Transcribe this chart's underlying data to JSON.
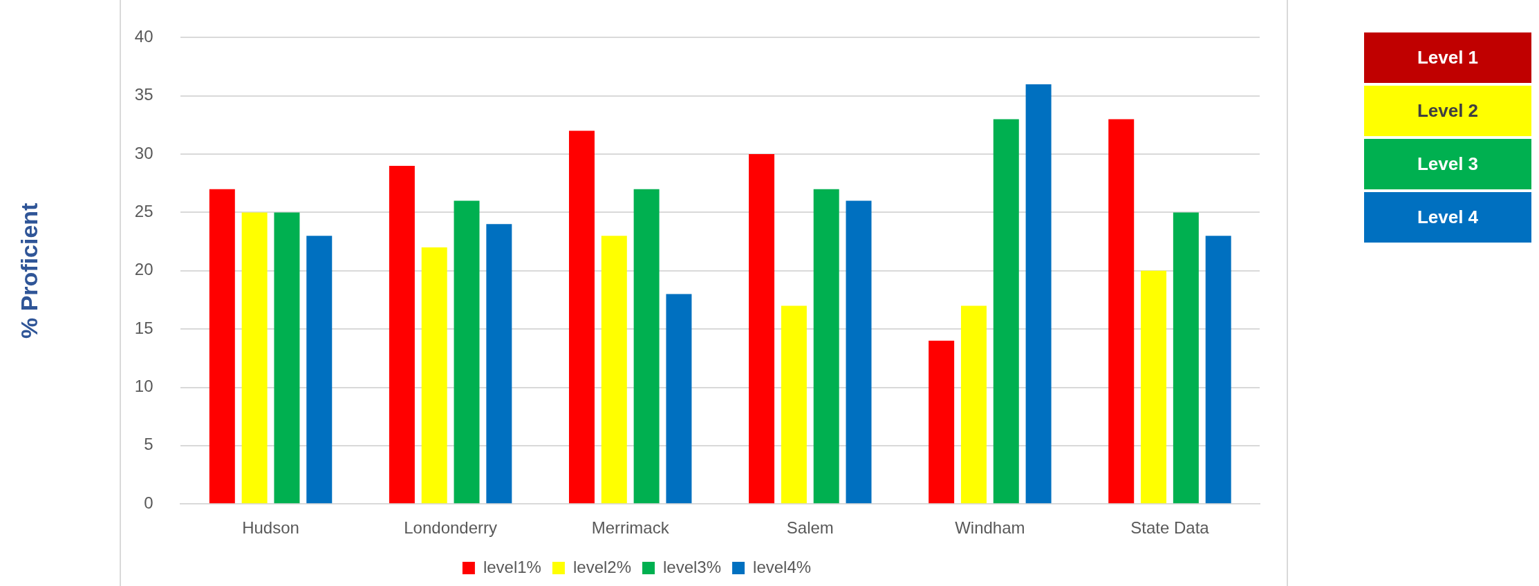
{
  "chart_data": {
    "type": "bar",
    "ylabel": "% Proficient",
    "categories": [
      "Hudson",
      "Londonderry",
      "Merrimack",
      "Salem",
      "Windham",
      "State Data"
    ],
    "series": [
      {
        "name": "level1%",
        "color": "#ff0000",
        "values": [
          27,
          29,
          32,
          30,
          14,
          33
        ]
      },
      {
        "name": "level2%",
        "color": "#ffff00",
        "values": [
          25,
          22,
          23,
          17,
          17,
          20
        ]
      },
      {
        "name": "level3%",
        "color": "#00b050",
        "values": [
          25,
          26,
          27,
          27,
          33,
          25
        ]
      },
      {
        "name": "level4%",
        "color": "#0070c0",
        "values": [
          23,
          24,
          18,
          26,
          36,
          23
        ]
      }
    ],
    "ylim": [
      0,
      40
    ],
    "yticks": [
      0,
      5,
      10,
      15,
      20,
      25,
      30,
      35,
      40
    ],
    "grid": "y",
    "legend": "bottom",
    "annotations": [
      "Level 1",
      "Level 2",
      "Level 3",
      "Level 4"
    ]
  }
}
